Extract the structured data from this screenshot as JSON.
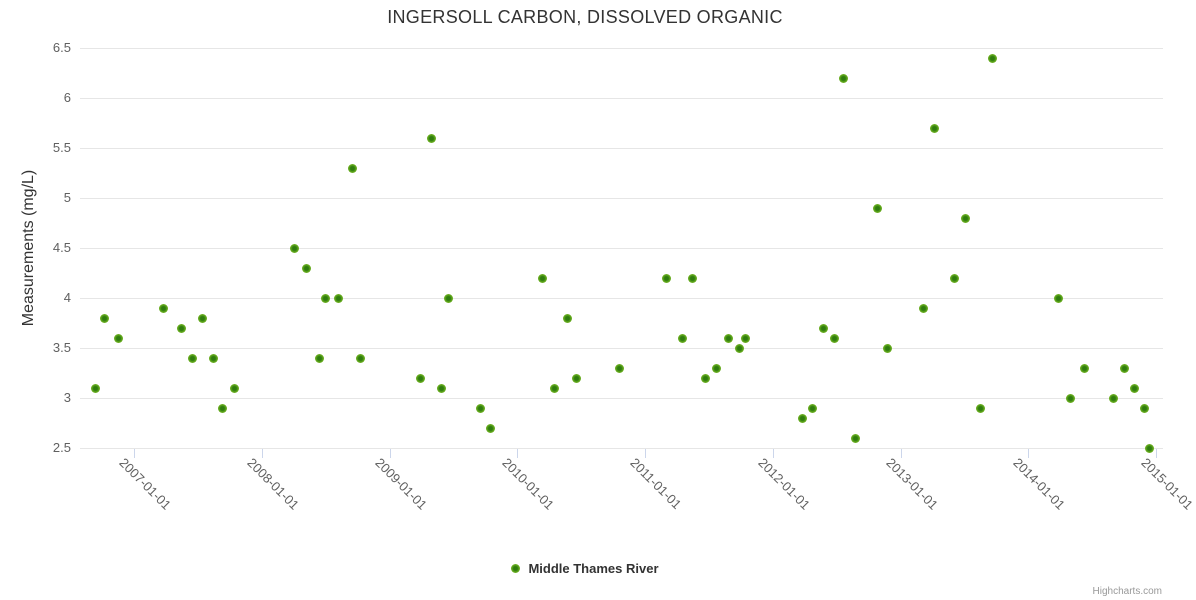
{
  "chart_data": {
    "type": "scatter",
    "title": "INGERSOLL CARBON, DISSOLVED ORGANIC",
    "xlabel": "",
    "ylabel": "Measurements (mg/L)",
    "ylim": [
      2.5,
      6.5
    ],
    "yticks": [
      2.5,
      3,
      3.5,
      4,
      4.5,
      5,
      5.5,
      6,
      6.5
    ],
    "ytick_labels": [
      "2.5",
      "3",
      "3.5",
      "4",
      "4.5",
      "5",
      "5.5",
      "6",
      "6.5"
    ],
    "xtick_years": [
      2007,
      2008,
      2009,
      2010,
      2011,
      2012,
      2013,
      2014,
      2015
    ],
    "xtick_labels": [
      "2007-01-01",
      "2008-01-01",
      "2009-01-01",
      "2010-01-01",
      "2011-01-01",
      "2012-01-01",
      "2013-01-01",
      "2014-01-01",
      "2015-01-01"
    ],
    "xlim_years": [
      2006.58,
      2015.03
    ],
    "grid": true,
    "legend_position": "bottom-center",
    "series": [
      {
        "name": "Middle Thames River",
        "points_x_year_y_mgL": [
          [
            2006.7,
            3.1
          ],
          [
            2006.77,
            3.8
          ],
          [
            2006.88,
            3.6
          ],
          [
            2007.23,
            3.9
          ],
          [
            2007.37,
            3.7
          ],
          [
            2007.46,
            3.4
          ],
          [
            2007.54,
            3.8
          ],
          [
            2007.62,
            3.4
          ],
          [
            2007.69,
            2.9
          ],
          [
            2007.79,
            3.1
          ],
          [
            2008.26,
            4.5
          ],
          [
            2008.35,
            4.3
          ],
          [
            2008.45,
            3.4
          ],
          [
            2008.5,
            4.0
          ],
          [
            2008.6,
            4.0
          ],
          [
            2008.71,
            5.3
          ],
          [
            2008.77,
            3.4
          ],
          [
            2009.24,
            3.2
          ],
          [
            2009.33,
            5.6
          ],
          [
            2009.41,
            3.1
          ],
          [
            2009.46,
            4.0
          ],
          [
            2009.71,
            2.9
          ],
          [
            2009.79,
            2.7
          ],
          [
            2010.2,
            4.2
          ],
          [
            2010.29,
            3.1
          ],
          [
            2010.39,
            3.8
          ],
          [
            2010.46,
            3.2
          ],
          [
            2010.8,
            3.3
          ],
          [
            2011.17,
            4.2
          ],
          [
            2011.29,
            3.6
          ],
          [
            2011.37,
            4.2
          ],
          [
            2011.47,
            3.2
          ],
          [
            2011.56,
            3.3
          ],
          [
            2011.65,
            3.6
          ],
          [
            2011.74,
            3.5
          ],
          [
            2011.79,
            3.6
          ],
          [
            2012.23,
            2.8
          ],
          [
            2012.31,
            2.9
          ],
          [
            2012.4,
            3.7
          ],
          [
            2012.48,
            3.6
          ],
          [
            2012.55,
            6.2
          ],
          [
            2012.65,
            2.6
          ],
          [
            2012.82,
            4.9
          ],
          [
            2012.9,
            3.5
          ],
          [
            2013.18,
            3.9
          ],
          [
            2013.27,
            5.7
          ],
          [
            2013.42,
            4.2
          ],
          [
            2013.51,
            4.8
          ],
          [
            2013.63,
            2.9
          ],
          [
            2013.72,
            6.4
          ],
          [
            2014.24,
            4.0
          ],
          [
            2014.33,
            3.0
          ],
          [
            2014.44,
            3.3
          ],
          [
            2014.67,
            3.0
          ],
          [
            2014.75,
            3.3
          ],
          [
            2014.83,
            3.1
          ],
          [
            2014.91,
            2.9
          ],
          [
            2014.95,
            2.5
          ]
        ]
      }
    ]
  },
  "legend": {
    "items": [
      {
        "label": "Middle Thames River"
      }
    ]
  },
  "credits": {
    "label": "Highcharts.com"
  },
  "colors": {
    "marker_outer": "#7cb82d",
    "marker_mid": "#5ea51b",
    "marker_inner": "#2f7d0e",
    "grid_line": "#e6e6e6",
    "axis_line": "#ccd6eb",
    "title_text": "#333333",
    "axis_label_text": "#606060",
    "credits_text": "#999999"
  }
}
